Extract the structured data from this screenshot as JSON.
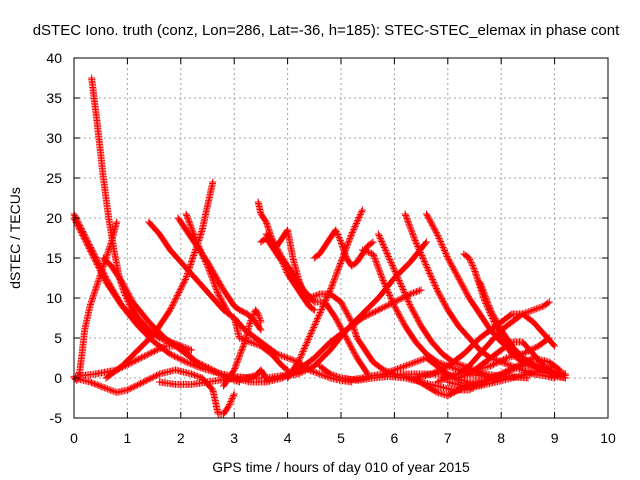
{
  "chart_data": {
    "type": "scatter",
    "title": "dSTEC Iono. truth (conz, Lon=286, Lat=-36, h=185): STEC-STEC_elemax in phase cont",
    "xlabel": "GPS time / hours of day 010 of year 2015",
    "ylabel": "dSTEC  / TECUs",
    "xlim": [
      0,
      10
    ],
    "ylim": [
      -5,
      40
    ],
    "xticks": [
      "0",
      "1",
      "2",
      "3",
      "4",
      "5",
      "6",
      "7",
      "8",
      "9",
      "10"
    ],
    "yticks": [
      "-5",
      "0",
      "5",
      "10",
      "15",
      "20",
      "25",
      "30",
      "35",
      "40"
    ],
    "grid": true,
    "marker": "plus",
    "color": "#ff0000",
    "series": [
      {
        "x": [
          0.0,
          0.3,
          0.6,
          0.9,
          1.2,
          1.5,
          1.8,
          2.0
        ],
        "y": [
          20.5,
          16.5,
          12.5,
          9.0,
          7.0,
          5.5,
          4.5,
          4.0
        ]
      },
      {
        "x": [
          0.33,
          0.45,
          0.55,
          0.65,
          0.75,
          0.85,
          0.95,
          1.05,
          1.2,
          1.4,
          1.6,
          1.8,
          2.0,
          2.2
        ],
        "y": [
          37.5,
          31.0,
          25.0,
          20.0,
          16.0,
          12.5,
          10.5,
          9.0,
          7.5,
          6.0,
          5.0,
          4.5,
          4.0,
          3.5
        ]
      },
      {
        "x": [
          0.0,
          0.3,
          0.6,
          0.9,
          1.2,
          1.5,
          1.8,
          2.1,
          2.4,
          2.7,
          3.0,
          3.3,
          3.6,
          3.9,
          4.2
        ],
        "y": [
          20.0,
          16.0,
          12.0,
          9.0,
          6.5,
          4.5,
          3.0,
          2.0,
          1.2,
          0.6,
          0.2,
          0.0,
          0.0,
          0.3,
          0.8
        ]
      },
      {
        "x": [
          0.0,
          0.05,
          0.1,
          0.15,
          0.2,
          0.3,
          0.5,
          0.7,
          0.8
        ],
        "y": [
          0.0,
          -0.3,
          0.5,
          3.0,
          6.0,
          9.0,
          13.0,
          17.0,
          19.5
        ]
      },
      {
        "x": [
          0.55,
          0.7,
          0.9,
          1.1,
          1.4,
          1.7,
          2.0,
          2.3,
          2.6,
          2.9,
          3.1
        ],
        "y": [
          15.0,
          14.0,
          12.0,
          9.5,
          7.0,
          5.0,
          3.5,
          2.0,
          1.0,
          0.0,
          -0.5
        ]
      },
      {
        "x": [
          0.0,
          0.3,
          0.6,
          0.8,
          1.0,
          1.3,
          1.6,
          1.9,
          2.2,
          2.4,
          2.6,
          2.65,
          2.7,
          2.8,
          2.9,
          3.0
        ],
        "y": [
          0.0,
          -0.5,
          -1.3,
          -1.8,
          -1.5,
          -0.5,
          0.5,
          1.0,
          0.5,
          0.0,
          -1.5,
          -3.0,
          -4.5,
          -4.5,
          -3.5,
          -2.0
        ]
      },
      {
        "x": [
          0.0,
          0.4,
          0.8,
          1.1,
          1.4,
          1.7,
          2.0,
          2.2
        ],
        "y": [
          0.2,
          0.5,
          1.0,
          2.0,
          3.0,
          4.0,
          4.0,
          2.5
        ]
      },
      {
        "x": [
          0.6,
          0.9,
          1.2,
          1.5,
          1.8,
          2.1,
          2.4,
          2.6
        ],
        "y": [
          0.0,
          1.5,
          3.5,
          5.5,
          8.5,
          12.5,
          18.5,
          24.5
        ]
      },
      {
        "x": [
          1.4,
          1.6,
          1.8,
          2.0,
          2.2,
          2.4,
          2.6,
          2.8,
          3.0,
          3.2,
          3.4,
          3.6,
          3.8,
          4.0,
          4.2,
          4.4,
          4.6,
          4.8,
          5.0,
          5.2
        ],
        "y": [
          19.5,
          18.0,
          16.0,
          14.5,
          13.0,
          11.5,
          10.0,
          8.5,
          7.5,
          6.0,
          5.0,
          4.0,
          3.0,
          2.5,
          2.0,
          1.0,
          0.5,
          0.0,
          -0.3,
          -0.5
        ]
      },
      {
        "x": [
          1.95,
          2.2,
          2.5,
          2.8,
          3.0,
          3.1,
          3.25,
          3.4,
          3.5
        ],
        "y": [
          20.0,
          17.5,
          14.5,
          11.0,
          9.0,
          8.5,
          8.0,
          7.0,
          6.0
        ]
      },
      {
        "x": [
          2.1,
          2.3,
          2.5,
          2.7,
          2.9,
          3.0,
          3.1,
          3.3,
          3.5,
          3.7,
          3.9,
          4.0
        ],
        "y": [
          20.5,
          17.0,
          14.0,
          10.5,
          8.0,
          7.5,
          5.0,
          4.5,
          4.0,
          3.0,
          1.5,
          1.0
        ]
      },
      {
        "x": [
          1.6,
          1.9,
          2.2,
          2.5,
          2.8,
          3.0,
          3.2,
          3.4,
          3.5,
          3.6
        ],
        "y": [
          -0.5,
          -0.8,
          -0.8,
          -0.5,
          -0.2,
          0.0,
          0.0,
          0.3,
          1.0,
          0.0
        ]
      },
      {
        "x": [
          2.8,
          3.0,
          3.2,
          3.3,
          3.4,
          3.45,
          3.5
        ],
        "y": [
          -1.0,
          1.0,
          4.5,
          7.0,
          8.5,
          8.0,
          7.0
        ]
      },
      {
        "x": [
          3.45,
          3.5,
          3.6,
          3.7,
          3.9,
          4.1,
          4.3,
          4.5,
          4.7,
          4.9,
          5.1,
          5.3,
          5.5
        ],
        "y": [
          22.0,
          20.5,
          19.5,
          17.5,
          15.0,
          13.0,
          11.0,
          9.5,
          9.5,
          7.5,
          5.0,
          2.5,
          0.5
        ]
      },
      {
        "x": [
          3.5,
          3.6,
          3.7,
          3.8,
          3.9,
          4.0,
          4.1,
          4.2,
          4.3,
          4.4,
          4.5
        ],
        "y": [
          17.0,
          17.5,
          16.5,
          15.5,
          14.5,
          13.0,
          12.0,
          11.0,
          10.0,
          9.0,
          8.5
        ]
      },
      {
        "x": [
          3.6,
          3.7,
          3.8,
          3.9,
          4.0,
          4.1,
          4.2,
          4.3,
          4.4,
          4.5
        ],
        "y": [
          18.0,
          17.0,
          16.5,
          17.5,
          18.5,
          15.0,
          12.5,
          10.5,
          9.0,
          8.5
        ]
      },
      {
        "x": [
          3.0,
          3.3,
          3.6,
          3.9,
          4.2,
          4.5,
          4.8,
          5.1,
          5.4,
          5.7,
          6.0,
          6.3,
          6.5
        ],
        "y": [
          0.0,
          -0.5,
          -0.5,
          0.0,
          1.0,
          2.5,
          4.5,
          6.0,
          7.5,
          8.5,
          9.5,
          10.5,
          11.0
        ]
      },
      {
        "x": [
          3.6,
          3.9,
          4.2,
          4.5,
          4.8,
          5.1,
          5.4,
          5.7,
          6.0,
          6.3,
          6.6
        ],
        "y": [
          -0.3,
          0.2,
          0.5,
          1.5,
          3.5,
          6.0,
          8.0,
          10.0,
          12.5,
          14.5,
          17.0
        ]
      },
      {
        "x": [
          4.0,
          4.2,
          4.4,
          4.6,
          4.8,
          5.0,
          5.2,
          5.4
        ],
        "y": [
          0.0,
          2.0,
          5.0,
          8.0,
          11.0,
          14.5,
          18.0,
          21.0
        ]
      },
      {
        "x": [
          4.4,
          4.6,
          4.8,
          5.0,
          5.2,
          5.3,
          5.5,
          5.6,
          5.8,
          6.0,
          6.2,
          6.5,
          6.8,
          7.0
        ],
        "y": [
          10.0,
          10.5,
          10.5,
          9.5,
          7.0,
          5.0,
          3.0,
          2.0,
          1.0,
          0.5,
          0.5,
          0.5,
          0.5,
          0.5
        ]
      },
      {
        "x": [
          4.5,
          4.6,
          4.7,
          4.8,
          4.9,
          5.0,
          5.1,
          5.2,
          5.3,
          5.4,
          5.5,
          5.6
        ],
        "y": [
          15.0,
          15.5,
          16.5,
          17.5,
          18.5,
          17.0,
          15.0,
          14.0,
          14.5,
          15.5,
          16.5,
          17.0
        ]
      },
      {
        "x": [
          4.6,
          4.8,
          5.0,
          5.2,
          5.4,
          5.6,
          5.8,
          6.0,
          6.2,
          6.4,
          6.6,
          6.8,
          7.0,
          7.2,
          7.4,
          7.6,
          7.8
        ],
        "y": [
          1.5,
          0.5,
          0.0,
          -0.2,
          0.0,
          0.3,
          0.5,
          1.0,
          1.5,
          2.0,
          2.5,
          1.5,
          0.5,
          -0.2,
          -0.5,
          -0.5,
          0.0
        ]
      },
      {
        "x": [
          5.0,
          5.3,
          5.6,
          5.9,
          6.2,
          6.5,
          6.8,
          7.1,
          7.4,
          7.7,
          8.0,
          8.3,
          8.6,
          8.9,
          9.1
        ],
        "y": [
          0.0,
          -0.3,
          0.0,
          0.2,
          0.0,
          -0.5,
          -1.0,
          -1.5,
          -1.5,
          -0.5,
          0.5,
          1.5,
          2.5,
          2.0,
          1.0
        ]
      },
      {
        "x": [
          5.4,
          5.6,
          5.8,
          6.0,
          6.2,
          6.4,
          6.6,
          6.8,
          7.0,
          7.2,
          7.4,
          7.6,
          7.8,
          8.0
        ],
        "y": [
          16.0,
          15.5,
          12.0,
          9.0,
          6.5,
          4.5,
          3.0,
          2.0,
          1.5,
          1.0,
          0.5,
          0.3,
          0.0,
          0.0
        ]
      },
      {
        "x": [
          5.7,
          5.9,
          6.1,
          6.3,
          6.5,
          6.7,
          6.9,
          7.1,
          7.3,
          7.5,
          7.7,
          7.9,
          8.1,
          8.3,
          8.5
        ],
        "y": [
          18.0,
          15.0,
          12.0,
          9.0,
          6.5,
          4.5,
          3.0,
          2.0,
          1.5,
          1.0,
          0.5,
          0.3,
          0.2,
          0.1,
          0.0
        ]
      },
      {
        "x": [
          6.2,
          6.4,
          6.6,
          6.8,
          7.0,
          7.2,
          7.4,
          7.6,
          7.8,
          8.0,
          8.2,
          8.4,
          8.6,
          8.8,
          9.0
        ],
        "y": [
          20.5,
          17.0,
          14.0,
          11.0,
          8.5,
          6.5,
          5.0,
          3.5,
          2.5,
          2.0,
          1.5,
          1.0,
          0.5,
          0.3,
          0.0
        ]
      },
      {
        "x": [
          6.6,
          6.8,
          7.0,
          7.2,
          7.4,
          7.6,
          7.8,
          8.0,
          8.2,
          8.4,
          8.6,
          8.8,
          9.0,
          9.2
        ],
        "y": [
          20.5,
          18.0,
          15.0,
          12.5,
          10.0,
          8.0,
          6.0,
          4.5,
          3.5,
          2.5,
          1.8,
          1.2,
          0.8,
          0.5
        ]
      },
      {
        "x": [
          6.0,
          6.2,
          6.4,
          6.6,
          6.8,
          7.0,
          7.2,
          7.4,
          7.6,
          7.8,
          8.0,
          8.2,
          8.4,
          8.6,
          8.8,
          9.0,
          9.2
        ],
        "y": [
          0.5,
          0.2,
          -0.2,
          -1.0,
          -1.8,
          -2.2,
          -1.5,
          -1.0,
          -0.5,
          0.0,
          0.5,
          1.0,
          1.5,
          1.5,
          0.8,
          0.2,
          0.0
        ]
      },
      {
        "x": [
          7.3,
          7.4,
          7.5,
          7.6,
          7.7,
          7.8,
          7.9,
          8.0,
          8.1,
          8.2,
          8.3,
          8.4,
          8.6,
          8.8,
          9.0,
          9.2
        ],
        "y": [
          15.5,
          15.0,
          13.5,
          11.5,
          9.5,
          8.0,
          6.5,
          5.0,
          4.0,
          3.0,
          2.5,
          2.0,
          1.5,
          1.0,
          0.5,
          0.3
        ]
      },
      {
        "x": [
          7.6,
          7.8,
          8.0,
          8.2,
          8.4,
          8.6,
          8.8,
          9.0,
          9.2
        ],
        "y": [
          12.0,
          8.5,
          6.0,
          4.0,
          2.5,
          1.5,
          1.0,
          0.5,
          0.5
        ]
      },
      {
        "x": [
          6.8,
          7.0,
          7.2,
          7.4,
          7.6,
          7.8,
          8.0,
          8.2,
          8.4,
          8.6,
          8.8,
          8.9
        ],
        "y": [
          -0.5,
          0.0,
          0.5,
          1.5,
          3.0,
          4.5,
          6.0,
          7.0,
          8.0,
          8.5,
          9.0,
          9.5
        ]
      },
      {
        "x": [
          6.4,
          6.7,
          7.0,
          7.3,
          7.6,
          7.9,
          8.2,
          8.4,
          8.6,
          8.8,
          9.0
        ],
        "y": [
          0.0,
          0.5,
          1.5,
          3.0,
          5.0,
          6.5,
          8.0,
          8.0,
          7.0,
          5.5,
          4.0
        ]
      },
      {
        "x": [
          6.9,
          7.2,
          7.5,
          7.8,
          8.1,
          8.4,
          8.7,
          8.9
        ],
        "y": [
          0.0,
          0.5,
          1.0,
          1.5,
          2.5,
          3.0,
          4.0,
          5.0
        ]
      },
      {
        "x": [
          7.0,
          7.3,
          7.6,
          7.9,
          8.2,
          8.5,
          8.8,
          9.0
        ],
        "y": [
          -0.5,
          -1.0,
          -1.0,
          -0.5,
          0.0,
          0.5,
          1.0,
          1.5
        ]
      },
      {
        "x": [
          7.2,
          7.4,
          7.6,
          7.8,
          8.0,
          8.2,
          8.4,
          8.6,
          8.8,
          9.0,
          9.2
        ],
        "y": [
          0.0,
          0.5,
          1.5,
          2.5,
          3.5,
          4.5,
          4.5,
          3.0,
          1.5,
          0.5,
          0.0
        ]
      }
    ]
  }
}
